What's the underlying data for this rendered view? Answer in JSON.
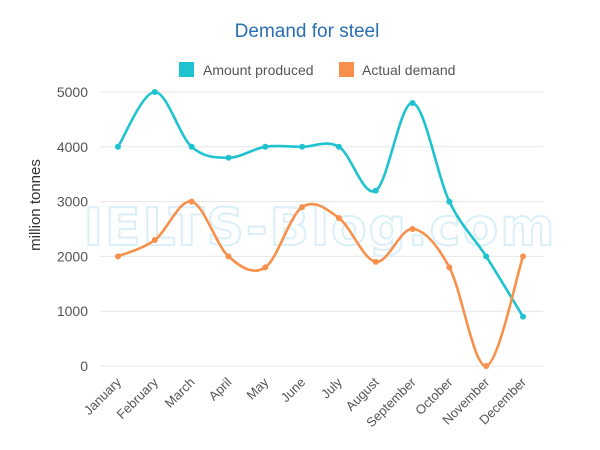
{
  "chart_data": {
    "type": "line",
    "title": "Demand for steel",
    "ylabel": "million tonnes",
    "xlabel": "",
    "categories": [
      "January",
      "February",
      "March",
      "April",
      "May",
      "June",
      "July",
      "August",
      "September",
      "October",
      "November",
      "December"
    ],
    "series": [
      {
        "name": "Amount produced",
        "color": "#1fc3cf",
        "values": [
          4000,
          5000,
          4000,
          3800,
          4000,
          4000,
          4000,
          3200,
          4800,
          3000,
          2000,
          900
        ]
      },
      {
        "name": "Actual demand",
        "color": "#f7904a",
        "values": [
          2000,
          2300,
          3000,
          2000,
          1800,
          2900,
          2700,
          1900,
          2500,
          1800,
          0,
          2000
        ]
      }
    ],
    "ylim": [
      0,
      5000
    ],
    "yticks": [
      0,
      1000,
      2000,
      3000,
      4000,
      5000
    ],
    "grid": true,
    "legend_position": "top"
  },
  "watermark": "IELTS-Blog.com"
}
